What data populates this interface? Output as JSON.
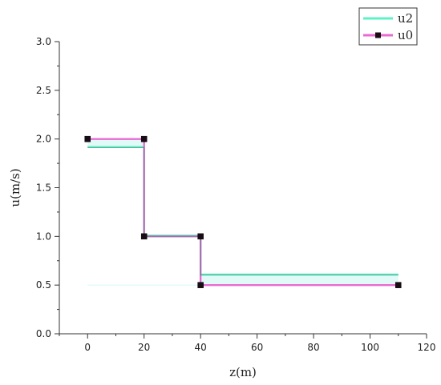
{
  "chart_data": {
    "type": "line",
    "xlabel": "z(m)",
    "ylabel": "u(m/s)",
    "xlim": [
      -10,
      120
    ],
    "ylim": [
      0,
      3.0
    ],
    "x_ticks": [
      0,
      20,
      40,
      60,
      80,
      100,
      120
    ],
    "y_ticks": [
      0.0,
      0.5,
      1.0,
      1.5,
      2.0,
      2.5,
      3.0
    ],
    "x_tick_labels": [
      "0",
      "20",
      "40",
      "60",
      "80",
      "100",
      "120"
    ],
    "y_tick_labels": [
      "0.0",
      "0.5",
      "1.0",
      "1.5",
      "2.0",
      "2.5",
      "3.0"
    ],
    "grid": false,
    "legend_position": "top-right",
    "series": [
      {
        "name": "u2",
        "color": "#5ef2c4",
        "marker": "none",
        "x": [
          0,
          20,
          20,
          40,
          40,
          110
        ],
        "y": [
          1.92,
          1.92,
          1.01,
          1.01,
          0.61,
          0.61
        ]
      },
      {
        "name": "u0",
        "color": "#e86bd1",
        "marker": "square",
        "x": [
          0,
          20,
          20,
          40,
          40,
          110
        ],
        "y": [
          2.0,
          2.0,
          1.0,
          1.0,
          0.5,
          0.5
        ]
      }
    ]
  }
}
